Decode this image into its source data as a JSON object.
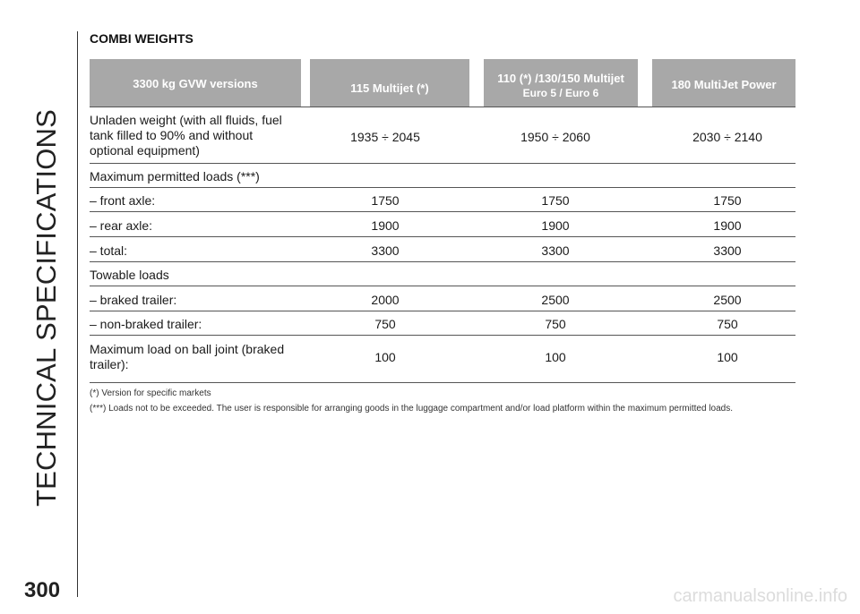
{
  "side_title": "TECHNICAL SPECIFICATIONS",
  "page_number": "300",
  "section_title": "COMBI WEIGHTS",
  "header": {
    "col0": "3300 kg GVW versions",
    "col1": "115 Multijet (*)",
    "col2_line1": "110 (*) /130/150 Multijet",
    "col2_line2": "Euro 5 / Euro 6",
    "col3": "180 MultiJet Power"
  },
  "rows": [
    {
      "label_lines": [
        "Unladen weight (with all fluids, fuel",
        "tank filled to 90% and without",
        "optional equipment)"
      ],
      "values": [
        "1935 ÷ 2045",
        "1950 ÷ 2060",
        "2030 ÷ 2140"
      ]
    },
    {
      "label_lines": [
        "Maximum permitted loads (***)"
      ],
      "values": [
        "",
        "",
        ""
      ]
    },
    {
      "label_lines": [
        "– front axle:"
      ],
      "values": [
        "1750",
        "1750",
        "1750"
      ]
    },
    {
      "label_lines": [
        "– rear axle:"
      ],
      "values": [
        "1900",
        "1900",
        "1900"
      ]
    },
    {
      "label_lines": [
        "– total:"
      ],
      "values": [
        "3300",
        "3300",
        "3300"
      ]
    },
    {
      "label_lines": [
        "Towable loads"
      ],
      "values": [
        "",
        "",
        ""
      ]
    },
    {
      "label_lines": [
        "– braked trailer:"
      ],
      "values": [
        "2000",
        "2500",
        "2500"
      ]
    },
    {
      "label_lines": [
        "– non-braked trailer:"
      ],
      "values": [
        "750",
        "750",
        "750"
      ]
    },
    {
      "label_lines": [
        "Maximum load on ball joint (braked",
        "trailer):"
      ],
      "values": [
        "100",
        "100",
        "100"
      ]
    }
  ],
  "notes": [
    "(*) Version for specific markets",
    "(***) Loads not to be exceeded. The user is responsible for arranging goods in the luggage compartment and/or load platform within the maximum permitted loads."
  ],
  "watermark": "carmanualsonline.info"
}
